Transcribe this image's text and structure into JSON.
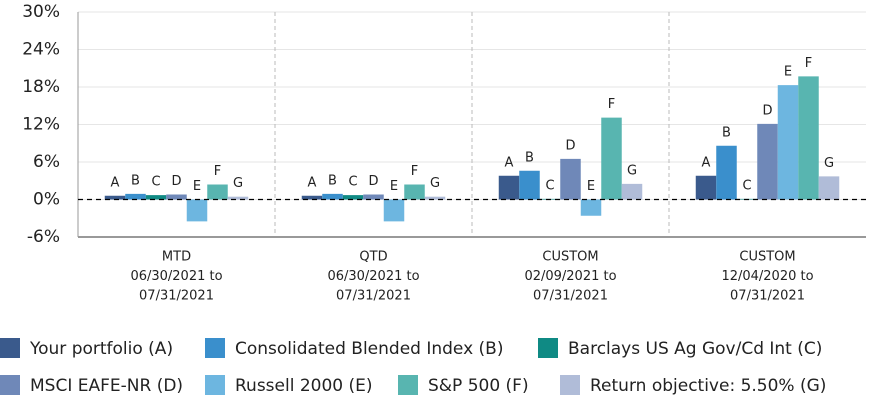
{
  "chart_data": {
    "type": "bar",
    "categories": [
      [
        "MTD",
        "06/30/2021 to",
        "07/31/2021"
      ],
      [
        "QTD",
        "06/30/2021 to",
        "07/31/2021"
      ],
      [
        "CUSTOM",
        "02/09/2021 to",
        "07/31/2021"
      ],
      [
        "CUSTOM",
        "12/04/2020 to",
        "07/31/2021"
      ]
    ],
    "series": [
      {
        "name": "Your portfolio (A)",
        "label": "A",
        "color": "#3a5a8c",
        "values": [
          0.6,
          0.6,
          3.8,
          3.8
        ]
      },
      {
        "name": "Consolidated Blended Index (B)",
        "label": "B",
        "color": "#3a8fcc",
        "values": [
          0.9,
          0.9,
          4.6,
          8.6
        ]
      },
      {
        "name": "Barclays US Ag Gov/Cd Int (C)",
        "label": "C",
        "color": "#0f8a84",
        "values": [
          0.7,
          0.7,
          0.1,
          0.1
        ]
      },
      {
        "name": "MSCI EAFE-NR (D)",
        "label": "D",
        "color": "#6f88b8",
        "values": [
          0.8,
          0.8,
          6.5,
          12.1
        ]
      },
      {
        "name": "Russell 2000 (E)",
        "label": "E",
        "color": "#6db6e0",
        "values": [
          -3.5,
          -3.5,
          -2.6,
          18.3
        ]
      },
      {
        "name": "S&P 500 (F)",
        "label": "F",
        "color": "#58b5b0",
        "values": [
          2.4,
          2.4,
          13.1,
          19.7
        ]
      },
      {
        "name": "Return objective: 5.50% (G)",
        "label": "G",
        "color": "#b0bcd8",
        "values": [
          0.45,
          0.45,
          2.5,
          3.7
        ]
      }
    ],
    "ylim": [
      -6,
      30
    ],
    "yticks": [
      {
        "value": -6,
        "label": "-6%"
      },
      {
        "value": 0,
        "label": "0%"
      },
      {
        "value": 6,
        "label": "6%"
      },
      {
        "value": 12,
        "label": "12%"
      },
      {
        "value": 18,
        "label": "18%"
      },
      {
        "value": 24,
        "label": "24%"
      },
      {
        "value": 30,
        "label": "30%"
      }
    ],
    "grid": true
  }
}
